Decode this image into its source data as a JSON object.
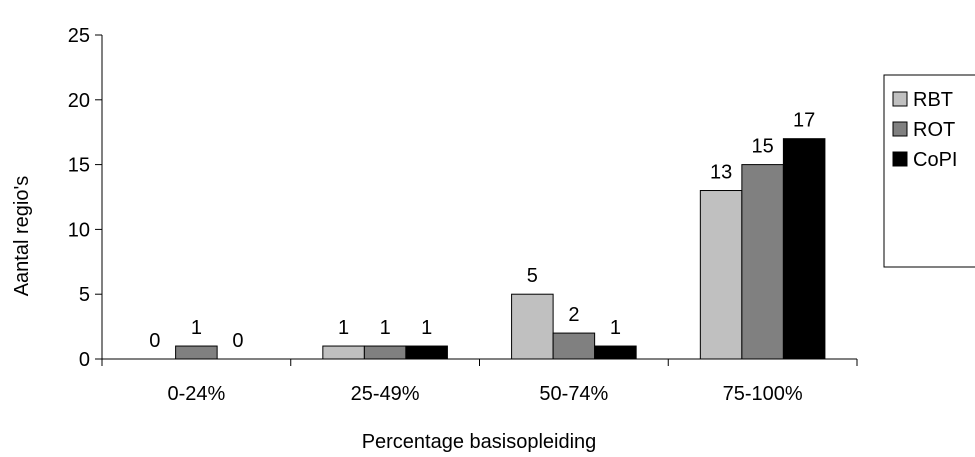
{
  "chart_data": {
    "type": "bar",
    "title": "",
    "xlabel": "Percentage basisopleiding",
    "ylabel": "Aantal regio's",
    "ylim": [
      0,
      25
    ],
    "yticks": [
      "0",
      "5",
      "10",
      "15",
      "20",
      "25"
    ],
    "categories": [
      "0-24%",
      "25-49%",
      "50-74%",
      "75-100%"
    ],
    "series": [
      {
        "name": "RBT",
        "values": [
          0,
          1,
          5,
          13
        ],
        "color": "#c0c0c0"
      },
      {
        "name": "ROT",
        "values": [
          1,
          1,
          2,
          15
        ],
        "color": "#808080"
      },
      {
        "name": "CoPI",
        "values": [
          0,
          1,
          1,
          17
        ],
        "color": "#000000"
      }
    ],
    "data_labels": [
      [
        "0",
        "1",
        "5",
        "13"
      ],
      [
        "1",
        "1",
        "2",
        "15"
      ],
      [
        "0",
        "1",
        "1",
        "17"
      ]
    ],
    "grid": false,
    "legend_position": "right"
  }
}
